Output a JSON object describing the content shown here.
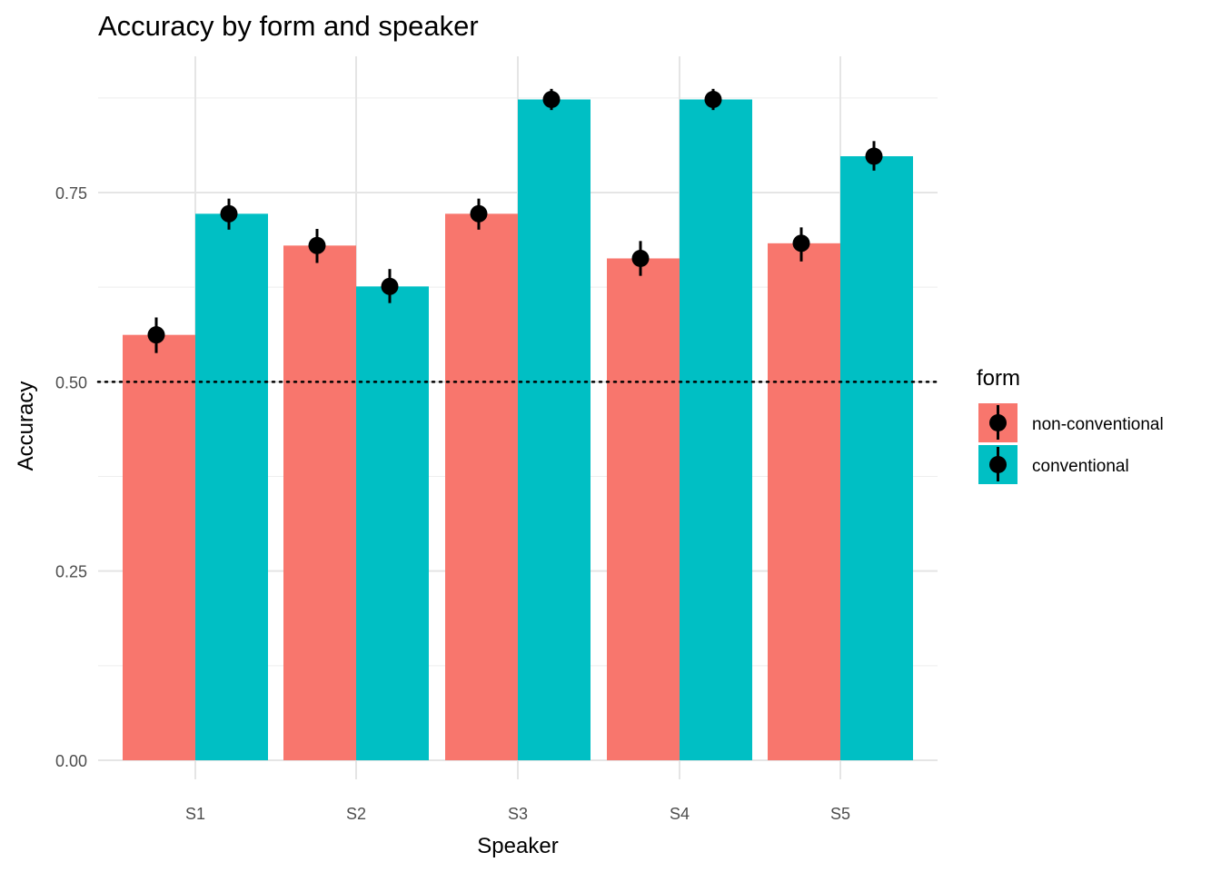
{
  "chart_data": {
    "type": "bar",
    "title": "Accuracy by form and speaker",
    "xlabel": "Speaker",
    "ylabel": "Accuracy",
    "categories": [
      "S1",
      "S2",
      "S3",
      "S4",
      "S5"
    ],
    "series": [
      {
        "name": "non-conventional",
        "color": "#F8766D",
        "values": [
          0.562,
          0.68,
          0.722,
          0.663,
          0.683
        ],
        "err_low": [
          0.538,
          0.657,
          0.701,
          0.64,
          0.659
        ],
        "err_high": [
          0.585,
          0.702,
          0.742,
          0.686,
          0.704
        ]
      },
      {
        "name": "conventional",
        "color": "#00BFC4",
        "values": [
          0.722,
          0.626,
          0.873,
          0.873,
          0.798
        ],
        "err_low": [
          0.701,
          0.604,
          0.859,
          0.859,
          0.779
        ],
        "err_high": [
          0.742,
          0.649,
          0.887,
          0.887,
          0.818
        ]
      }
    ],
    "ylim": [
      0,
      0.91
    ],
    "y_ticks": [
      0.0,
      0.25,
      0.5,
      0.75
    ],
    "y_tick_labels": [
      "0.00",
      "0.25",
      "0.50",
      "0.75"
    ],
    "reference_line": {
      "y": 0.5,
      "style": "dotted"
    },
    "grid": true,
    "legend": {
      "title": "form",
      "position": "right"
    }
  }
}
